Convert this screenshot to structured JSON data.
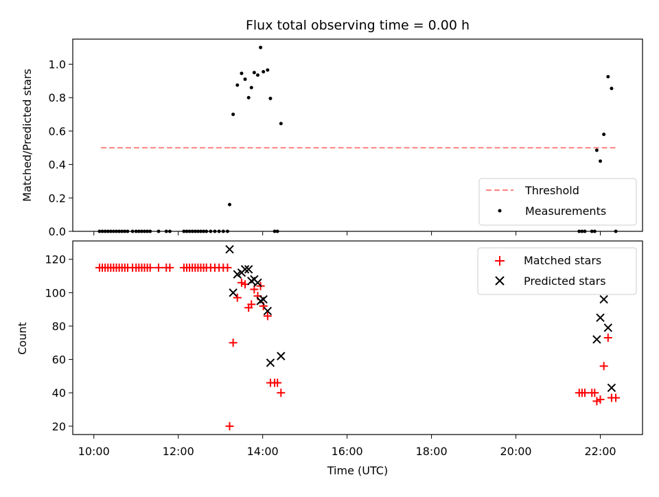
{
  "chart_data": [
    {
      "type": "scatter",
      "title": "Flux total observing time = 0.00 h",
      "xlabel": "",
      "ylabel": "Matched/Predicted stars",
      "xlim": [
        "09:30",
        "23:00"
      ],
      "ylim": [
        0,
        1.15
      ],
      "yticks": [
        "0.0",
        "0.2",
        "0.4",
        "0.6",
        "0.8",
        "1.0"
      ],
      "grid": false,
      "legend_position": "bottom-right",
      "threshold": {
        "name": "Threshold",
        "color": "#ff8080",
        "value": 0.5,
        "segments": [
          [
            "10:10",
            "13:15"
          ],
          [
            "13:15",
            "22:25"
          ]
        ]
      },
      "series": [
        {
          "name": "Measurements",
          "color": "#000000",
          "points": [
            [
              "10:08",
              0
            ],
            [
              "10:12",
              0
            ],
            [
              "10:16",
              0
            ],
            [
              "10:20",
              0
            ],
            [
              "10:24",
              0
            ],
            [
              "10:28",
              0
            ],
            [
              "10:32",
              0
            ],
            [
              "10:36",
              0
            ],
            [
              "10:40",
              0
            ],
            [
              "10:44",
              0
            ],
            [
              "10:48",
              0
            ],
            [
              "10:55",
              0
            ],
            [
              "11:00",
              0
            ],
            [
              "11:04",
              0
            ],
            [
              "11:08",
              0
            ],
            [
              "11:12",
              0
            ],
            [
              "11:16",
              0
            ],
            [
              "11:20",
              0
            ],
            [
              "11:32",
              0
            ],
            [
              "11:43",
              0
            ],
            [
              "11:48",
              0
            ],
            [
              "12:08",
              0
            ],
            [
              "12:12",
              0
            ],
            [
              "12:16",
              0
            ],
            [
              "12:20",
              0
            ],
            [
              "12:24",
              0
            ],
            [
              "12:28",
              0
            ],
            [
              "12:32",
              0
            ],
            [
              "12:36",
              0
            ],
            [
              "12:40",
              0
            ],
            [
              "12:46",
              0
            ],
            [
              "12:52",
              0
            ],
            [
              "12:58",
              0
            ],
            [
              "13:04",
              0
            ],
            [
              "13:10",
              0
            ],
            [
              "13:13",
              0.16
            ],
            [
              "13:18",
              0.7
            ],
            [
              "13:24",
              0.875
            ],
            [
              "13:30",
              0.945
            ],
            [
              "13:35",
              0.91
            ],
            [
              "13:40",
              0.8
            ],
            [
              "13:44",
              0.86
            ],
            [
              "13:48",
              0.95
            ],
            [
              "13:53",
              0.935
            ],
            [
              "13:57",
              1.1
            ],
            [
              "14:01",
              0.955
            ],
            [
              "14:07",
              0.965
            ],
            [
              "14:11",
              0.795
            ],
            [
              "14:17",
              0
            ],
            [
              "14:21",
              0
            ],
            [
              "14:26",
              0.645
            ],
            [
              "21:30",
              0
            ],
            [
              "21:34",
              0
            ],
            [
              "21:38",
              0
            ],
            [
              "21:48",
              0
            ],
            [
              "21:52",
              0
            ],
            [
              "21:55",
              0.485
            ],
            [
              "22:00",
              0.42
            ],
            [
              "22:05",
              0.58
            ],
            [
              "22:11",
              0.925
            ],
            [
              "22:16",
              0.855
            ],
            [
              "22:22",
              0
            ]
          ]
        }
      ]
    },
    {
      "type": "scatter",
      "title": "",
      "xlabel": "Time (UTC)",
      "ylabel": "Count",
      "xlim": [
        "09:30",
        "23:00"
      ],
      "ylim": [
        15,
        131
      ],
      "xticks": [
        "10:00",
        "12:00",
        "14:00",
        "16:00",
        "18:00",
        "20:00",
        "22:00"
      ],
      "yticks": [
        "20",
        "40",
        "60",
        "80",
        "100",
        "120"
      ],
      "grid": false,
      "legend_position": "top-right",
      "series": [
        {
          "name": "Matched stars",
          "marker": "plus",
          "color": "#ff0000",
          "points": [
            [
              "10:08",
              115
            ],
            [
              "10:12",
              115
            ],
            [
              "10:16",
              115
            ],
            [
              "10:20",
              115
            ],
            [
              "10:24",
              115
            ],
            [
              "10:28",
              115
            ],
            [
              "10:32",
              115
            ],
            [
              "10:36",
              115
            ],
            [
              "10:40",
              115
            ],
            [
              "10:44",
              115
            ],
            [
              "10:48",
              115
            ],
            [
              "10:55",
              115
            ],
            [
              "11:00",
              115
            ],
            [
              "11:04",
              115
            ],
            [
              "11:08",
              115
            ],
            [
              "11:12",
              115
            ],
            [
              "11:16",
              115
            ],
            [
              "11:20",
              115
            ],
            [
              "11:32",
              115
            ],
            [
              "11:43",
              115
            ],
            [
              "11:48",
              115
            ],
            [
              "12:08",
              115
            ],
            [
              "12:12",
              115
            ],
            [
              "12:16",
              115
            ],
            [
              "12:20",
              115
            ],
            [
              "12:24",
              115
            ],
            [
              "12:28",
              115
            ],
            [
              "12:32",
              115
            ],
            [
              "12:36",
              115
            ],
            [
              "12:40",
              115
            ],
            [
              "12:46",
              115
            ],
            [
              "12:52",
              115
            ],
            [
              "12:58",
              115
            ],
            [
              "13:04",
              115
            ],
            [
              "13:10",
              115
            ],
            [
              "13:13",
              20
            ],
            [
              "13:18",
              70
            ],
            [
              "13:24",
              97
            ],
            [
              "13:30",
              106
            ],
            [
              "13:35",
              105
            ],
            [
              "13:40",
              91
            ],
            [
              "13:44",
              93
            ],
            [
              "13:48",
              102
            ],
            [
              "13:53",
              98
            ],
            [
              "13:57",
              104
            ],
            [
              "14:01",
              92
            ],
            [
              "14:07",
              86
            ],
            [
              "14:11",
              46
            ],
            [
              "14:17",
              46
            ],
            [
              "14:21",
              46
            ],
            [
              "14:26",
              40
            ],
            [
              "21:30",
              40
            ],
            [
              "21:34",
              40
            ],
            [
              "21:38",
              40
            ],
            [
              "21:48",
              40
            ],
            [
              "21:52",
              40
            ],
            [
              "21:55",
              35
            ],
            [
              "22:00",
              36
            ],
            [
              "22:05",
              56
            ],
            [
              "22:11",
              73
            ],
            [
              "22:16",
              37
            ],
            [
              "22:22",
              37
            ]
          ]
        },
        {
          "name": "Predicted stars",
          "marker": "x",
          "color": "#000000",
          "points": [
            [
              "13:13",
              126
            ],
            [
              "13:18",
              100
            ],
            [
              "13:24",
              111
            ],
            [
              "13:30",
              112
            ],
            [
              "13:35",
              114
            ],
            [
              "13:40",
              114
            ],
            [
              "13:44",
              107
            ],
            [
              "13:48",
              108
            ],
            [
              "13:53",
              106
            ],
            [
              "13:57",
              95
            ],
            [
              "14:01",
              96
            ],
            [
              "14:07",
              89
            ],
            [
              "14:11",
              58
            ],
            [
              "14:26",
              62
            ],
            [
              "21:55",
              72
            ],
            [
              "22:00",
              85
            ],
            [
              "22:05",
              96
            ],
            [
              "22:11",
              79
            ],
            [
              "22:16",
              43
            ]
          ]
        }
      ]
    }
  ]
}
